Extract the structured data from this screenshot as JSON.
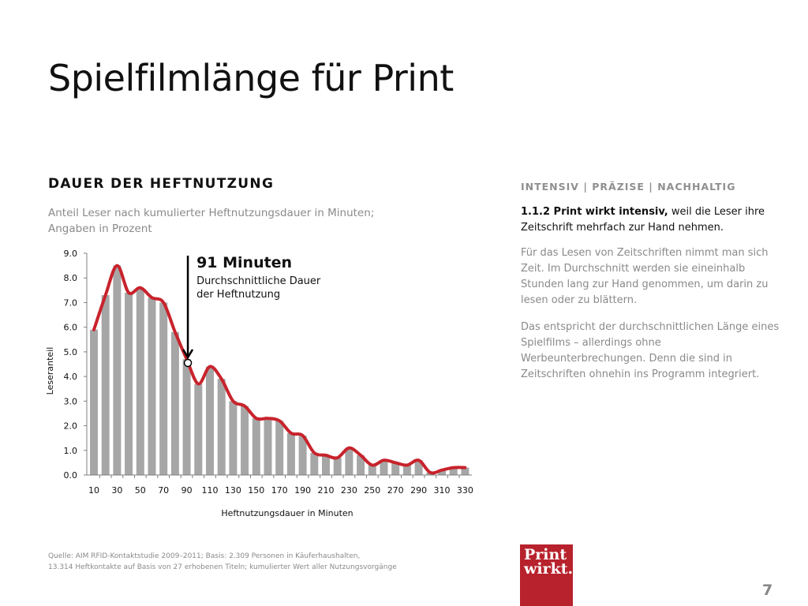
{
  "slide": {
    "title": "Spielfilmlänge für Print",
    "section_heading": "DAUER DER HEFTNUTZUNG",
    "subtitle_line1": "Anteil Leser nach kumulierter Heftnutzungsdauer in Minuten;",
    "subtitle_line2": "Angaben in Prozent",
    "page_number": "7"
  },
  "right": {
    "heading": "INTENSIV | PRÄZISE | NACHHALTIG",
    "lead_bold": "1.1.2 Print wirkt intensiv,",
    "lead_rest": " weil die Leser ihre Zeitschrift mehrfach zur Hand nehmen.",
    "para1": "Für das Lesen von Zeitschriften nimmt man sich Zeit. Im Durchschnitt werden sie eineinhalb Stunden lang zur Hand genommen, um darin zu lesen oder zu blättern.",
    "para2": "Das entspricht der durchschnittlichen Länge eines Spielfilms – allerdings ohne Werbeunterbrechungen. Denn die sind in Zeitschriften ohnehin ins Programm integriert."
  },
  "footer": {
    "source_line1": "Quelle: AIM RFID-Kontaktstudie 2009–2011; Basis: 2.309 Personen in Käuferhaushalten,",
    "source_line2": "13.314 Heftkontakte auf Basis von 27 erhobenen Titeln; kumulierter Wert aller Nutzungsvorgänge"
  },
  "logo": {
    "line1": "Print",
    "line2": "wirkt.",
    "color": "#b7222c"
  },
  "colors": {
    "bar": "#a6a6a6",
    "line": "#c8232c",
    "axis": "#7f7f7f",
    "text": "#111111",
    "muted": "#8a8a8a"
  },
  "chart_data": {
    "type": "bar",
    "xlabel": "Heftnutzungsdauer in Minuten",
    "ylabel": "Leseranteil",
    "ylim": [
      0,
      9
    ],
    "yticks": [
      "0.0",
      "1.0",
      "2.0",
      "3.0",
      "4.0",
      "5.0",
      "6.0",
      "7.0",
      "8.0",
      "9.0"
    ],
    "x_tick_labels": [
      "10",
      "30",
      "50",
      "70",
      "90",
      "110",
      "130",
      "150",
      "170",
      "190",
      "210",
      "230",
      "250",
      "270",
      "290",
      "310",
      "330"
    ],
    "x": [
      10,
      20,
      30,
      40,
      50,
      60,
      70,
      80,
      90,
      100,
      110,
      120,
      130,
      140,
      150,
      160,
      170,
      180,
      190,
      200,
      210,
      220,
      230,
      240,
      250,
      260,
      270,
      280,
      290,
      300,
      310,
      320,
      330
    ],
    "series": [
      {
        "type": "bar",
        "values": [
          5.9,
          7.3,
          8.5,
          7.4,
          7.6,
          7.2,
          7.0,
          5.8,
          4.7,
          3.7,
          4.4,
          3.9,
          3.0,
          2.8,
          2.3,
          2.3,
          2.2,
          1.7,
          1.6,
          0.9,
          0.8,
          0.7,
          1.1,
          0.8,
          0.4,
          0.6,
          0.5,
          0.4,
          0.6,
          0.1,
          0.2,
          0.3,
          0.3
        ]
      },
      {
        "type": "line",
        "values": [
          5.9,
          7.3,
          8.5,
          7.4,
          7.6,
          7.2,
          7.0,
          5.8,
          4.7,
          3.7,
          4.4,
          3.9,
          3.0,
          2.8,
          2.3,
          2.3,
          2.2,
          1.7,
          1.6,
          0.9,
          0.8,
          0.7,
          1.1,
          0.8,
          0.4,
          0.6,
          0.5,
          0.4,
          0.6,
          0.1,
          0.2,
          0.3,
          0.3
        ]
      }
    ],
    "annotation": {
      "x": 91,
      "value": 4.55,
      "title": "91 Minuten",
      "line1": "Durchschnittliche Dauer",
      "line2": "der Heftnutzung"
    }
  }
}
